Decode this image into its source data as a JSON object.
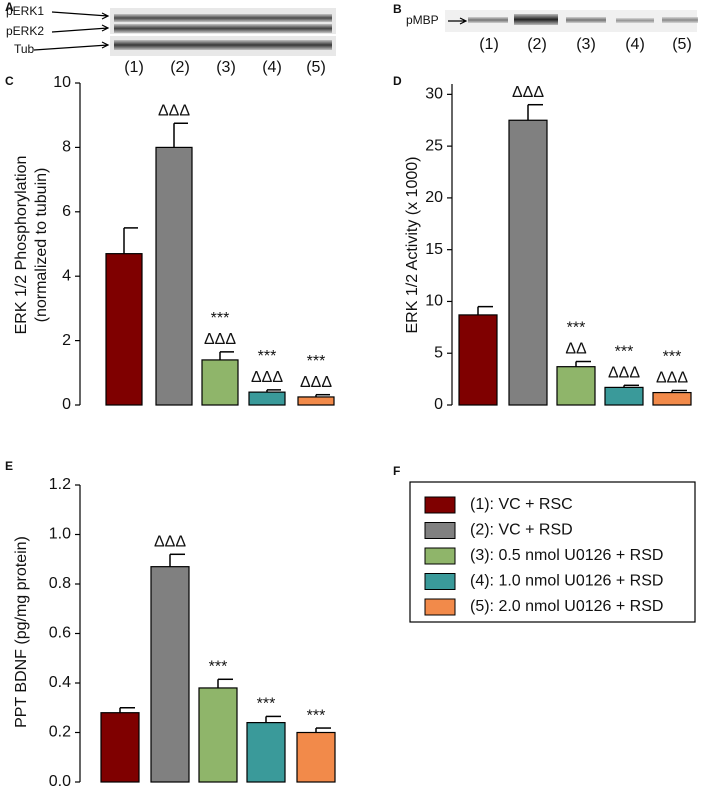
{
  "panels": {
    "a": {
      "letter": "A",
      "bands": [
        "pERK1",
        "pERK2",
        "Tub"
      ],
      "lanes": [
        "(1)",
        "(2)",
        "(3)",
        "(4)",
        "(5)"
      ]
    },
    "b": {
      "letter": "B",
      "bands": [
        "pMBP"
      ],
      "lanes": [
        "(1)",
        "(2)",
        "(3)",
        "(4)",
        "(5)"
      ]
    },
    "f": {
      "letter": "F"
    }
  },
  "legend": [
    {
      "label": "(1): VC + RSC",
      "color": "#7f0000"
    },
    {
      "label": "(2): VC + RSD",
      "color": "#808080"
    },
    {
      "label": "(3): 0.5 nmol U0126 + RSD",
      "color": "#8fb56a"
    },
    {
      "label": "(4): 1.0 nmol U0126 + RSD",
      "color": "#3a9a9a"
    },
    {
      "label": "(5): 2.0 nmol U0126 + RSD",
      "color": "#f28a4a"
    }
  ],
  "chart_data": [
    {
      "type": "bar",
      "letter": "C",
      "ylabel": [
        "ERK 1/2 Phosphorylation",
        "(normalized to tubuin)"
      ],
      "categories": [
        null,
        null,
        null,
        null,
        null
      ],
      "values": [
        4.7,
        8.0,
        1.4,
        0.4,
        0.25
      ],
      "errors": [
        0.8,
        0.75,
        0.25,
        0.07,
        0.07
      ],
      "colors": [
        "#7f0000",
        "#808080",
        "#8fb56a",
        "#3a9a9a",
        "#f28a4a"
      ],
      "annotations": [
        null,
        [
          "ΔΔΔ"
        ],
        [
          "***",
          "ΔΔΔ"
        ],
        [
          "***",
          "ΔΔΔ"
        ],
        [
          "***",
          "ΔΔΔ"
        ]
      ],
      "ylim": [
        0,
        10
      ],
      "yticks": [
        0,
        2,
        4,
        6,
        8,
        10
      ]
    },
    {
      "type": "bar",
      "letter": "D",
      "ylabel": [
        "ERK 1/2 Activity (x 1000)"
      ],
      "categories": [
        null,
        null,
        null,
        null,
        null
      ],
      "values": [
        8.7,
        27.5,
        3.7,
        1.7,
        1.2
      ],
      "errors": [
        0.8,
        1.5,
        0.5,
        0.2,
        0.2
      ],
      "colors": [
        "#7f0000",
        "#808080",
        "#8fb56a",
        "#3a9a9a",
        "#f28a4a"
      ],
      "annotations": [
        null,
        [
          "ΔΔΔ"
        ],
        [
          "***",
          "ΔΔ"
        ],
        [
          "***",
          "ΔΔΔ"
        ],
        [
          "***",
          "ΔΔΔ"
        ]
      ],
      "ylim": [
        0,
        31
      ],
      "yticks": [
        0,
        5,
        10,
        15,
        20,
        25,
        30
      ]
    },
    {
      "type": "bar",
      "letter": "E",
      "ylabel": [
        "PPT BDNF (pg/mg protein)"
      ],
      "categories": [
        null,
        null,
        null,
        null,
        null
      ],
      "values": [
        0.28,
        0.87,
        0.38,
        0.24,
        0.2
      ],
      "errors": [
        0.02,
        0.05,
        0.035,
        0.025,
        0.018
      ],
      "colors": [
        "#7f0000",
        "#808080",
        "#8fb56a",
        "#3a9a9a",
        "#f28a4a"
      ],
      "annotations": [
        null,
        [
          "ΔΔΔ"
        ],
        [
          "***"
        ],
        [
          "***"
        ],
        [
          "***"
        ]
      ],
      "ylim": [
        0,
        1.2
      ],
      "yticks": [
        {
          "value": 0,
          "label": "0.0"
        },
        0.2,
        0.4,
        0.6,
        0.8,
        {
          "value": 1,
          "label": "1.0"
        },
        1.2
      ]
    }
  ]
}
